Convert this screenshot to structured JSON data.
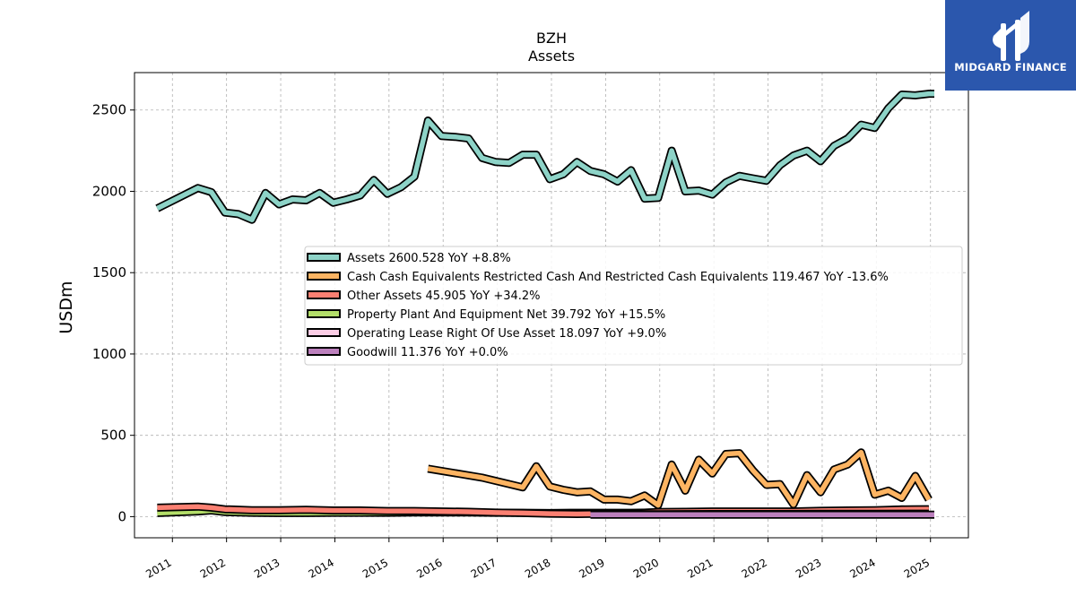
{
  "chart_data": {
    "type": "line",
    "title": "BZH",
    "subtitle": "Assets",
    "ylabel": "USDm",
    "xlim": [
      2010.3,
      2025.7
    ],
    "ylim": [
      -130,
      2730
    ],
    "yticks": [
      0,
      500,
      1000,
      1500,
      2000,
      2500
    ],
    "xticks": [
      "2011",
      "2012",
      "2013",
      "2014",
      "2015",
      "2016",
      "2017",
      "2018",
      "2019",
      "2020",
      "2021",
      "2022",
      "2023",
      "2024",
      "2025"
    ],
    "grid": true,
    "legend_position": "center-right",
    "series": [
      {
        "name": "Assets",
        "legend": "Assets  2600.528 YoY +8.8%",
        "color": "#8dd3c7",
        "x": [
          2010.72,
          2011.47,
          2011.72,
          2011.97,
          2012.22,
          2012.47,
          2012.72,
          2012.97,
          2013.22,
          2013.47,
          2013.72,
          2013.97,
          2014.22,
          2014.47,
          2014.72,
          2014.97,
          2015.22,
          2015.47,
          2015.72,
          2015.97,
          2016.22,
          2016.47,
          2016.72,
          2016.97,
          2017.22,
          2017.47,
          2017.72,
          2017.97,
          2018.22,
          2018.47,
          2018.72,
          2018.97,
          2019.22,
          2019.47,
          2019.72,
          2019.97,
          2020.22,
          2020.47,
          2020.72,
          2020.97,
          2021.22,
          2021.47,
          2021.72,
          2021.97,
          2022.22,
          2022.47,
          2022.72,
          2022.97,
          2023.22,
          2023.47,
          2023.72,
          2023.97,
          2024.22,
          2024.47,
          2024.72,
          2024.97,
          2025.07
        ],
        "values": [
          1895,
          2020,
          1995,
          1870,
          1860,
          1825,
          1990,
          1920,
          1950,
          1945,
          1990,
          1930,
          1950,
          1975,
          2070,
          1985,
          2025,
          2090,
          2435,
          2340,
          2335,
          2325,
          2205,
          2180,
          2175,
          2225,
          2225,
          2075,
          2105,
          2180,
          2125,
          2105,
          2060,
          2130,
          1955,
          1960,
          2250,
          2000,
          2005,
          1980,
          2055,
          2095,
          2080,
          2065,
          2160,
          2220,
          2250,
          2185,
          2280,
          2325,
          2410,
          2390,
          2510,
          2595,
          2590,
          2600,
          2600
        ]
      },
      {
        "name": "Cash Cash Equivalents Restricted Cash And Restricted Cash Equivalents",
        "legend": "Cash Cash Equivalents Restricted Cash And Restricted Cash Equivalents  119.467 YoY -13.6%",
        "color": "#fdb462",
        "x": [
          2015.72,
          2016.72,
          2017.47,
          2017.72,
          2017.97,
          2018.22,
          2018.47,
          2018.72,
          2018.97,
          2019.22,
          2019.47,
          2019.72,
          2019.97,
          2020.22,
          2020.47,
          2020.72,
          2020.97,
          2021.22,
          2021.47,
          2021.72,
          2021.97,
          2022.22,
          2022.47,
          2022.72,
          2022.97,
          2023.22,
          2023.47,
          2023.72,
          2023.97,
          2024.22,
          2024.47,
          2024.72,
          2024.97
        ],
        "values": [
          295,
          240,
          180,
          310,
          185,
          165,
          150,
          155,
          105,
          105,
          95,
          130,
          70,
          320,
          160,
          350,
          265,
          385,
          390,
          285,
          195,
          200,
          75,
          255,
          150,
          290,
          320,
          395,
          135,
          160,
          115,
          250,
          105
        ]
      },
      {
        "name": "Other Assets",
        "legend": "Other Assets  45.905 YoY +34.2%",
        "color": "#fb8072",
        "x": [
          2010.72,
          2011.47,
          2011.72,
          2011.97,
          2012.47,
          2012.97,
          2013.47,
          2013.97,
          2014.47,
          2014.97,
          2015.47,
          2015.97,
          2016.47,
          2016.97,
          2017.47,
          2017.97,
          2018.47,
          2018.97,
          2019.47,
          2019.97,
          2020.47,
          2020.97,
          2021.47,
          2021.97,
          2022.47,
          2022.97,
          2023.47,
          2023.97,
          2024.47,
          2024.97
        ],
        "values": [
          55,
          62,
          55,
          45,
          40,
          40,
          42,
          38,
          38,
          35,
          35,
          32,
          30,
          25,
          22,
          18,
          16,
          18,
          20,
          28,
          30,
          32,
          32,
          32,
          32,
          36,
          38,
          40,
          44,
          46
        ]
      },
      {
        "name": "Property Plant And Equipment Net",
        "legend": "Property Plant And Equipment Net  39.792 YoY +15.5%",
        "color": "#b3de69",
        "x": [
          2010.72,
          2011.47,
          2011.72,
          2011.97,
          2012.47,
          2012.97,
          2013.47,
          2013.97,
          2014.47,
          2014.97,
          2015.47,
          2015.97,
          2016.47,
          2016.97,
          2017.47,
          2017.97,
          2018.47,
          2018.97,
          2019.47,
          2019.97,
          2020.47,
          2020.97,
          2021.47,
          2021.97,
          2022.47,
          2022.97,
          2023.47,
          2023.97,
          2024.47,
          2024.97
        ],
        "values": [
          22,
          32,
          38,
          28,
          24,
          22,
          22,
          24,
          24,
          24,
          26,
          26,
          26,
          24,
          24,
          22,
          24,
          24,
          24,
          26,
          26,
          26,
          26,
          26,
          28,
          30,
          32,
          36,
          44,
          40
        ]
      },
      {
        "name": "Operating Lease Right Of Use Asset",
        "legend": "Operating Lease Right Of Use Asset  18.097 YoY +9.0%",
        "color": "#fccde5",
        "x": [
          2019.22,
          2019.97,
          2020.97,
          2021.97,
          2022.97,
          2023.97,
          2024.97
        ],
        "values": [
          16,
          15,
          16,
          16,
          17,
          17,
          18
        ]
      },
      {
        "name": "Goodwill",
        "legend": "Goodwill  11.376 YoY +0.0%",
        "color": "#bc80bd",
        "x": [
          2018.72,
          2025.07
        ],
        "values": [
          11.376,
          11.376
        ]
      }
    ]
  },
  "logo": {
    "text": "MIDGARD FINANCE",
    "bg_color": "#2b57ad"
  }
}
